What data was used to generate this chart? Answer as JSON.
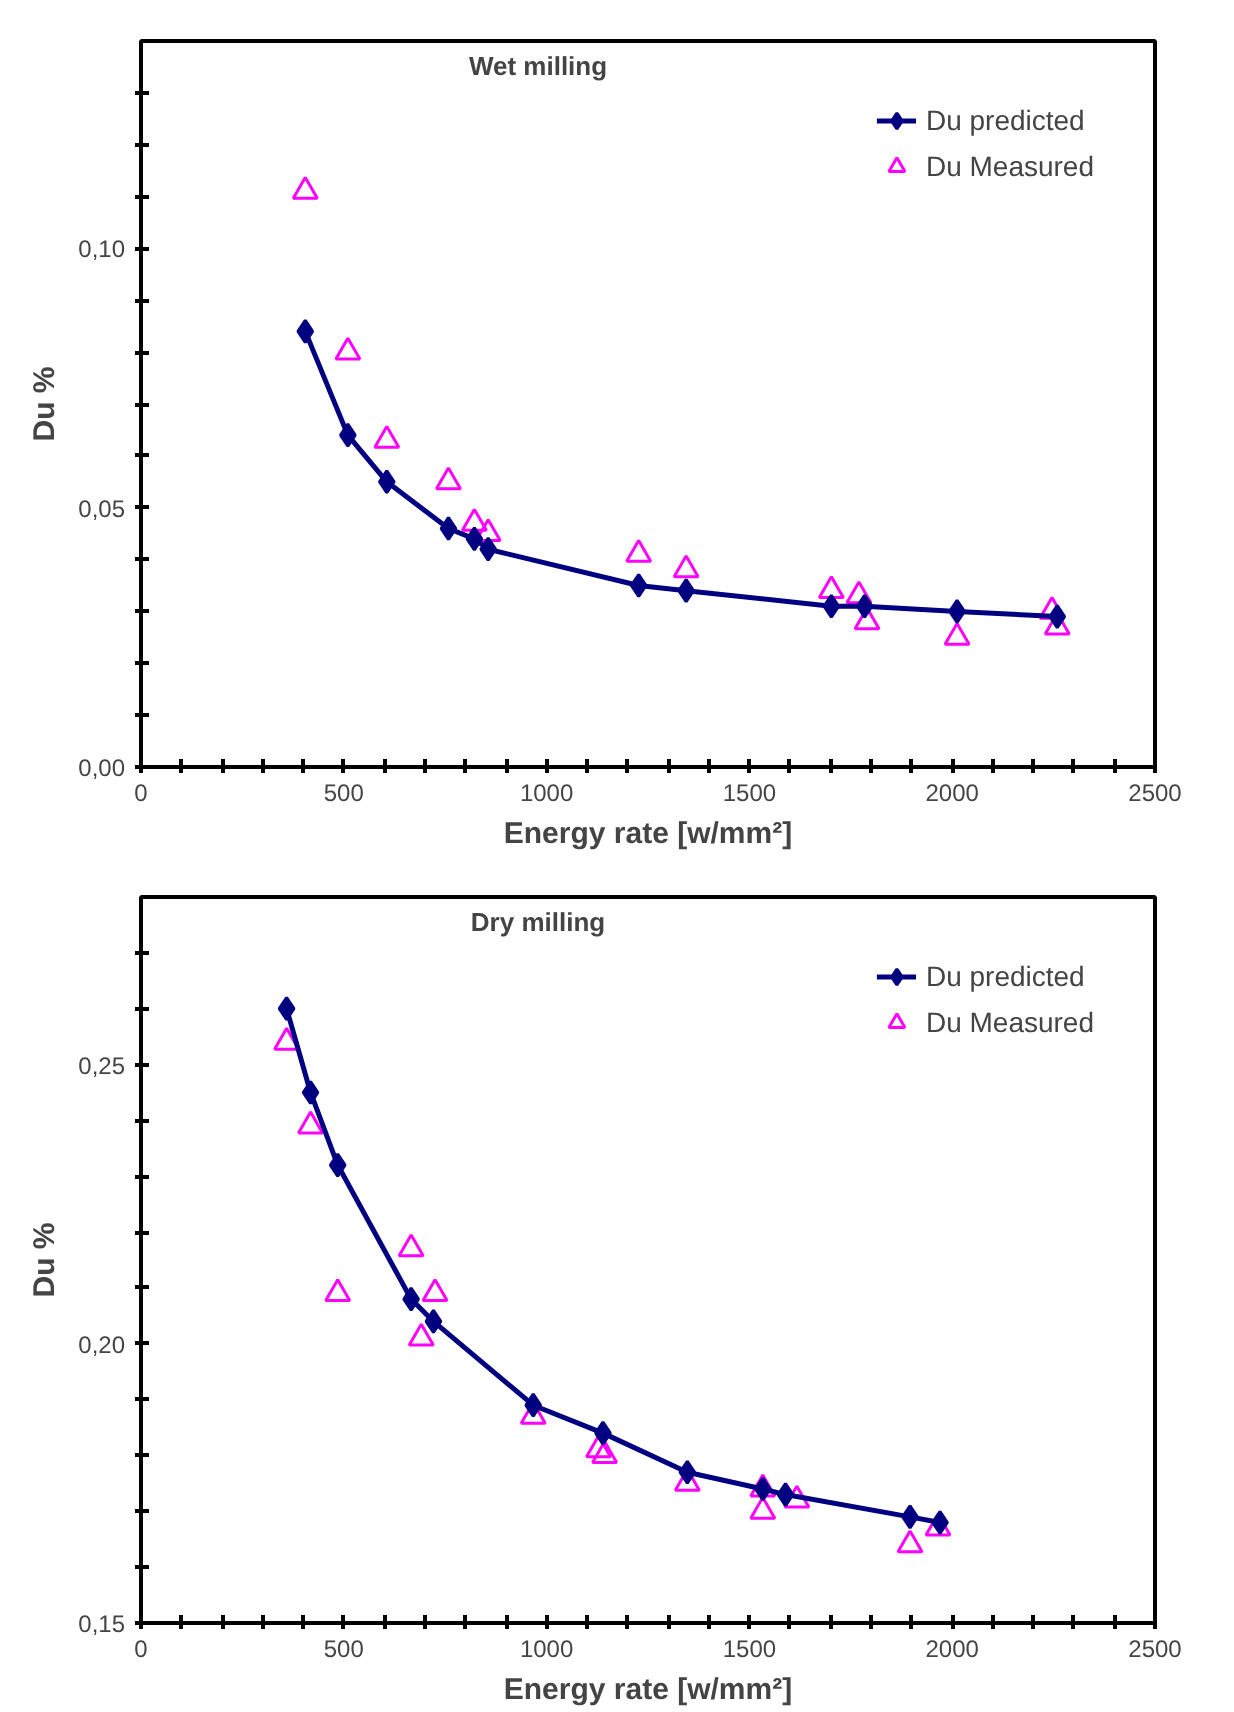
{
  "chart_data": [
    {
      "type": "line",
      "title": "Wet milling",
      "xlabel": "Energy rate [w/mm²]",
      "ylabel": "Du %",
      "legend": "top right",
      "grid": false,
      "xlim": [
        0,
        2500
      ],
      "ylim": [
        0,
        0.14
      ],
      "xticks": [
        0,
        {
          "value": 100,
          "label": null
        },
        {
          "value": 200,
          "label": null
        },
        {
          "value": 300,
          "label": null
        },
        {
          "value": 400,
          "label": null
        },
        500,
        {
          "value": 600,
          "label": null
        },
        {
          "value": 700,
          "label": null
        },
        {
          "value": 800,
          "label": null
        },
        {
          "value": 900,
          "label": null
        },
        1000,
        {
          "value": 1100,
          "label": null
        },
        {
          "value": 1200,
          "label": null
        },
        {
          "value": 1300,
          "label": null
        },
        {
          "value": 1400,
          "label": null
        },
        1500,
        {
          "value": 1600,
          "label": null
        },
        {
          "value": 1700,
          "label": null
        },
        {
          "value": 1800,
          "label": null
        },
        {
          "value": 1900,
          "label": null
        },
        2000,
        {
          "value": 2100,
          "label": null
        },
        {
          "value": 2200,
          "label": null
        },
        {
          "value": 2300,
          "label": null
        },
        {
          "value": 2400,
          "label": null
        },
        2500
      ],
      "yticks": [
        {
          "value": 0,
          "label": "0,00"
        },
        {
          "value": 0.01,
          "label": null
        },
        {
          "value": 0.02,
          "label": null
        },
        {
          "value": 0.03,
          "label": null
        },
        {
          "value": 0.04,
          "label": null
        },
        {
          "value": 0.05,
          "label": "0,05"
        },
        {
          "value": 0.06,
          "label": null
        },
        {
          "value": 0.07,
          "label": null
        },
        {
          "value": 0.08,
          "label": null
        },
        {
          "value": 0.09,
          "label": null
        },
        {
          "value": 0.1,
          "label": "0,10"
        },
        {
          "value": 0.11,
          "label": null
        },
        {
          "value": 0.12,
          "label": null
        },
        {
          "value": 0.13,
          "label": null
        }
      ],
      "series": [
        {
          "name": "Du predicted",
          "marker": "diamond",
          "line_style": "solid",
          "color": "#000080",
          "x": [
            405,
            510,
            606,
            758,
            822,
            856,
            1227,
            1344,
            1702,
            1784,
            2012,
            2259
          ],
          "values": [
            0.084,
            0.064,
            0.055,
            0.046,
            0.044,
            0.042,
            0.035,
            0.034,
            0.031,
            0.031,
            0.03,
            0.029
          ]
        },
        {
          "name": "Du Measured",
          "type": "scatter",
          "marker": "triangle",
          "color": "#ff00ff",
          "x": [
            405,
            510,
            606,
            758,
            822,
            856,
            1227,
            1344,
            1702,
            1770,
            1790,
            2012,
            2246,
            2259
          ],
          "values": [
            0.111,
            0.08,
            0.063,
            0.055,
            0.047,
            0.045,
            0.041,
            0.038,
            0.034,
            0.033,
            0.028,
            0.025,
            0.03,
            0.027
          ]
        }
      ]
    },
    {
      "type": "line",
      "title": "Dry milling",
      "xlabel": "Energy rate [w/mm²]",
      "ylabel": "Du %",
      "legend": "top right",
      "grid": false,
      "xlim": [
        0,
        2500
      ],
      "ylim": [
        0.15,
        0.28
      ],
      "xticks": [
        0,
        {
          "value": 100,
          "label": null
        },
        {
          "value": 200,
          "label": null
        },
        {
          "value": 300,
          "label": null
        },
        {
          "value": 400,
          "label": null
        },
        500,
        {
          "value": 600,
          "label": null
        },
        {
          "value": 700,
          "label": null
        },
        {
          "value": 800,
          "label": null
        },
        {
          "value": 900,
          "label": null
        },
        1000,
        {
          "value": 1100,
          "label": null
        },
        {
          "value": 1200,
          "label": null
        },
        {
          "value": 1300,
          "label": null
        },
        {
          "value": 1400,
          "label": null
        },
        1500,
        {
          "value": 1600,
          "label": null
        },
        {
          "value": 1700,
          "label": null
        },
        {
          "value": 1800,
          "label": null
        },
        {
          "value": 1900,
          "label": null
        },
        2000,
        {
          "value": 2100,
          "label": null
        },
        {
          "value": 2200,
          "label": null
        },
        {
          "value": 2300,
          "label": null
        },
        {
          "value": 2400,
          "label": null
        },
        2500
      ],
      "yticks": [
        {
          "value": 0.15,
          "label": "0,15"
        },
        {
          "value": 0.16,
          "label": null
        },
        {
          "value": 0.17,
          "label": null
        },
        {
          "value": 0.18,
          "label": null
        },
        {
          "value": 0.19,
          "label": null
        },
        {
          "value": 0.2,
          "label": "0,20"
        },
        {
          "value": 0.21,
          "label": null
        },
        {
          "value": 0.22,
          "label": null
        },
        {
          "value": 0.23,
          "label": null
        },
        {
          "value": 0.24,
          "label": null
        },
        {
          "value": 0.25,
          "label": "0,25"
        },
        {
          "value": 0.26,
          "label": null
        },
        {
          "value": 0.27,
          "label": null
        }
      ],
      "series": [
        {
          "name": "Du predicted",
          "marker": "diamond",
          "line_style": "solid",
          "color": "#000080",
          "x": [
            359,
            418,
            485,
            666,
            721,
            967,
            1139,
            1347,
            1533,
            1589,
            1896,
            1970
          ],
          "values": [
            0.26,
            0.245,
            0.232,
            0.208,
            0.204,
            0.189,
            0.184,
            0.177,
            0.174,
            0.173,
            0.169,
            0.168
          ]
        },
        {
          "name": "Du Measured",
          "type": "scatter",
          "marker": "triangle",
          "color": "#ff00ff",
          "x": [
            359,
            418,
            485,
            666,
            691,
            725,
            967,
            1128,
            1143,
            1347,
            1533,
            1533,
            1617,
            1896,
            1965
          ],
          "values": [
            0.254,
            0.239,
            0.209,
            0.217,
            0.201,
            0.209,
            0.187,
            0.181,
            0.18,
            0.175,
            0.174,
            0.17,
            0.172,
            0.164,
            0.167
          ]
        }
      ]
    }
  ]
}
